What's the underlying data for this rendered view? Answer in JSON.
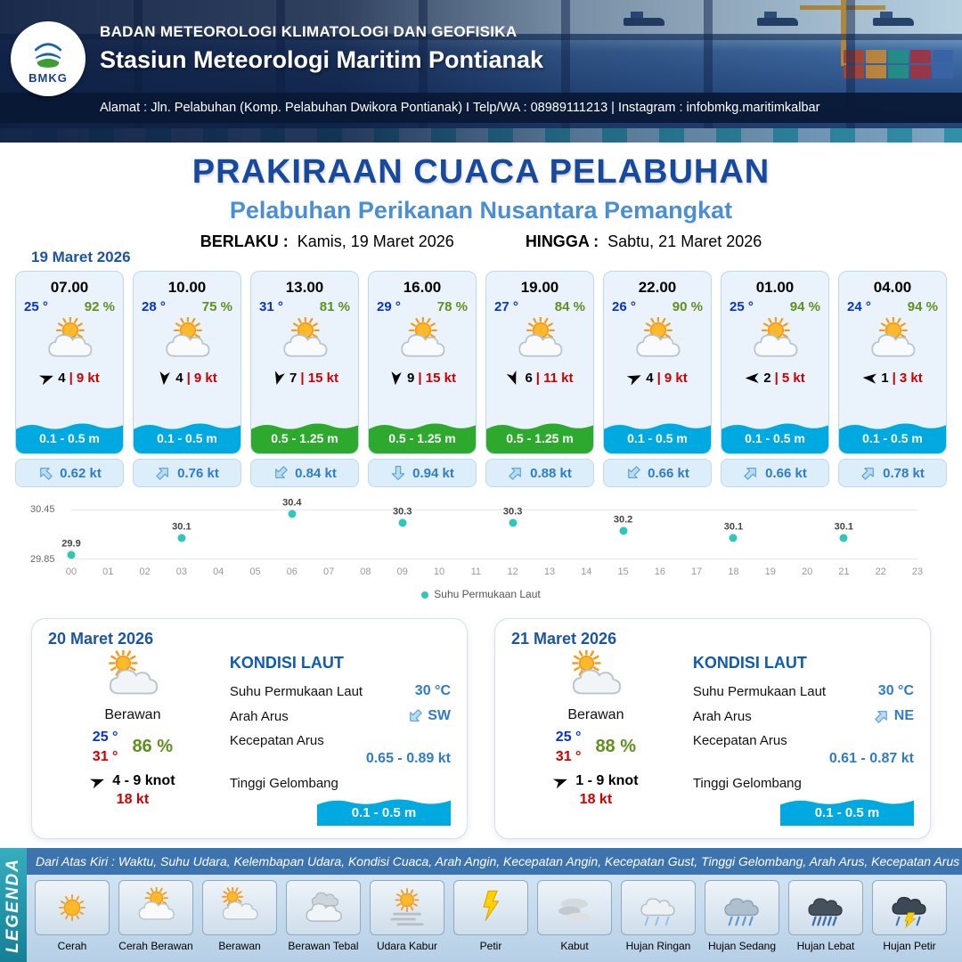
{
  "colors": {
    "title_blue": "#174a9f",
    "subtitle_blue": "#4a8fd3",
    "date_blue": "#1b55a0",
    "temp_blue": "#0633cc",
    "humidity_green": "#5f8f1f",
    "gust_red": "#cc0000",
    "sea_blue": "#2f7cc8",
    "wave_low": "#00a9e0",
    "wave_mid": "#2daa2d",
    "chart_dot": "#2ec8b8"
  },
  "header": {
    "logo_text": "BMKG",
    "agency": "BADAN METEOROLOGI KLIMATOLOGI DAN GEOFISIKA",
    "station": "Stasiun Meteorologi Maritim Pontianak",
    "address": "Alamat : Jln. Pelabuhan (Komp. Pelabuhan Dwikora Pontianak) I Telp/WA : 08989111213 | Instagram : infobmkg.maritimkalbar"
  },
  "title": {
    "main": "PRAKIRAAN CUACA PELABUHAN",
    "subtitle": "Pelabuhan Perikanan Nusantara Pemangkat",
    "valid_label": "BERLAKU :",
    "valid_value": "Kamis, 19 Maret 2026",
    "until_label": "HINGGA :",
    "until_value": "Sabtu, 21 Maret 2026"
  },
  "forecast_date": "19 Maret 2026",
  "forecast": [
    {
      "time": "07.00",
      "temp": "25 °",
      "humidity": "92 %",
      "icon": "sun-cloud",
      "wind_rot": -20,
      "wind_speed": "4",
      "gust": "| 9 kt",
      "wave": "0.1 - 0.5 m",
      "wave_level": "low",
      "current_rot": -45,
      "current": "0.62 kt"
    },
    {
      "time": "10.00",
      "temp": "28 °",
      "humidity": "75 %",
      "icon": "sun-cloud",
      "wind_rot": 95,
      "wind_speed": "4",
      "gust": "| 9 kt",
      "wave": "0.1 - 0.5 m",
      "wave_level": "low",
      "current_rot": 45,
      "current": "0.76 kt"
    },
    {
      "time": "13.00",
      "temp": "31 °",
      "humidity": "81 %",
      "icon": "sun-cloud",
      "wind_rot": 105,
      "wind_speed": "7",
      "gust": "| 15 kt",
      "wave": "0.5 - 1.25 m",
      "wave_level": "mid",
      "current_rot": -135,
      "current": "0.84 kt"
    },
    {
      "time": "16.00",
      "temp": "29 °",
      "humidity": "78 %",
      "icon": "sun-cloud",
      "wind_rot": 95,
      "wind_speed": "9",
      "gust": "| 15 kt",
      "wave": "0.5 - 1.25 m",
      "wave_level": "mid",
      "current_rot": 180,
      "current": "0.94 kt"
    },
    {
      "time": "19.00",
      "temp": "27 °",
      "humidity": "84 %",
      "icon": "sun-cloud",
      "wind_rot": 70,
      "wind_speed": "6",
      "gust": "| 11 kt",
      "wave": "0.5 - 1.25 m",
      "wave_level": "mid",
      "current_rot": 45,
      "current": "0.88 kt"
    },
    {
      "time": "22.00",
      "temp": "26 °",
      "humidity": "90 %",
      "icon": "sun-cloud",
      "wind_rot": -25,
      "wind_speed": "4",
      "gust": "| 9 kt",
      "wave": "0.1 - 0.5 m",
      "wave_level": "low",
      "current_rot": -135,
      "current": "0.66 kt"
    },
    {
      "time": "01.00",
      "temp": "25 °",
      "humidity": "94 %",
      "icon": "sun-cloud",
      "wind_rot": 180,
      "wind_speed": "2",
      "gust": "| 5 kt",
      "wave": "0.1 - 0.5 m",
      "wave_level": "low",
      "current_rot": 45,
      "current": "0.66 kt"
    },
    {
      "time": "04.00",
      "temp": "24 °",
      "humidity": "94 %",
      "icon": "sun-cloud",
      "wind_rot": 185,
      "wind_speed": "1",
      "gust": "| 3 kt",
      "wave": "0.1 - 0.5 m",
      "wave_level": "low",
      "current_rot": 45,
      "current": "0.78 kt"
    }
  ],
  "chart_data": {
    "type": "scatter",
    "series_name": "Suhu Permukaan Laut",
    "x": [
      0,
      3,
      6,
      9,
      12,
      15,
      18,
      21
    ],
    "values": [
      29.9,
      30.1,
      30.4,
      30.3,
      30.3,
      30.2,
      30.1,
      30.1
    ],
    "ylim": [
      29.85,
      30.45
    ],
    "y_tick_labels": [
      "30.45",
      "29.85"
    ],
    "x_ticks": [
      "00",
      "01",
      "02",
      "03",
      "04",
      "05",
      "06",
      "07",
      "08",
      "09",
      "10",
      "11",
      "12",
      "13",
      "14",
      "15",
      "16",
      "17",
      "18",
      "19",
      "20",
      "21",
      "22",
      "23"
    ],
    "grid": true,
    "legend_position": "bottom"
  },
  "day_cards": [
    {
      "date": "20 Maret 2026",
      "icon": "cloud-sun",
      "condition": "Berawan",
      "temp_min": "25 °",
      "temp_max": "31 °",
      "humidity": "86 %",
      "wind_rot": -20,
      "wind": "4 - 9 knot",
      "gust": "18 kt",
      "sea_title": "KONDISI LAUT",
      "sst_label": "Suhu Permukaan Laut",
      "sst_value": "30 °C",
      "current_dir_label": "Arah Arus",
      "current_rot": -135,
      "current_dir": "SW",
      "current_speed_label": "Kecepatan Arus",
      "current_speed": "0.65 - 0.89 kt",
      "wave_label": "Tinggi Gelombang",
      "wave": "0.1 - 0.5 m"
    },
    {
      "date": "21 Maret 2026",
      "icon": "cloud-sun",
      "condition": "Berawan",
      "temp_min": "25 °",
      "temp_max": "31 °",
      "humidity": "88 %",
      "wind_rot": -20,
      "wind": "1 - 9 knot",
      "gust": "18 kt",
      "sea_title": "KONDISI LAUT",
      "sst_label": "Suhu Permukaan Laut",
      "sst_value": "30 °C",
      "current_dir_label": "Arah Arus",
      "current_rot": 45,
      "current_dir": "NE",
      "current_speed_label": "Kecepatan Arus",
      "current_speed": "0.61 - 0.87 kt",
      "wave_label": "Tinggi Gelombang",
      "wave": "0.1 - 0.5 m"
    }
  ],
  "legend": {
    "vertical_label": "LEGENDA",
    "description": "Dari Atas Kiri : Waktu, Suhu Udara, Kelembapan Udara, Kondisi Cuaca, Arah Angin, Kecepatan Angin, Kecepatan Gust, Tinggi Gelombang, Arah Arus, Kecepatan Arus",
    "items": [
      {
        "label": "Cerah",
        "icon": "sun"
      },
      {
        "label": "Cerah Berawan",
        "icon": "sun-cloud"
      },
      {
        "label": "Berawan",
        "icon": "cloud-sun"
      },
      {
        "label": "Berawan Tebal",
        "icon": "cloud"
      },
      {
        "label": "Udara Kabur",
        "icon": "haze"
      },
      {
        "label": "Petir",
        "icon": "lightning"
      },
      {
        "label": "Kabut",
        "icon": "fog"
      },
      {
        "label": "Hujan Ringan",
        "icon": "rain-light"
      },
      {
        "label": "Hujan Sedang",
        "icon": "rain-medium"
      },
      {
        "label": "Hujan Lebat",
        "icon": "rain-heavy"
      },
      {
        "label": "Hujan Petir",
        "icon": "thunderstorm"
      }
    ]
  }
}
